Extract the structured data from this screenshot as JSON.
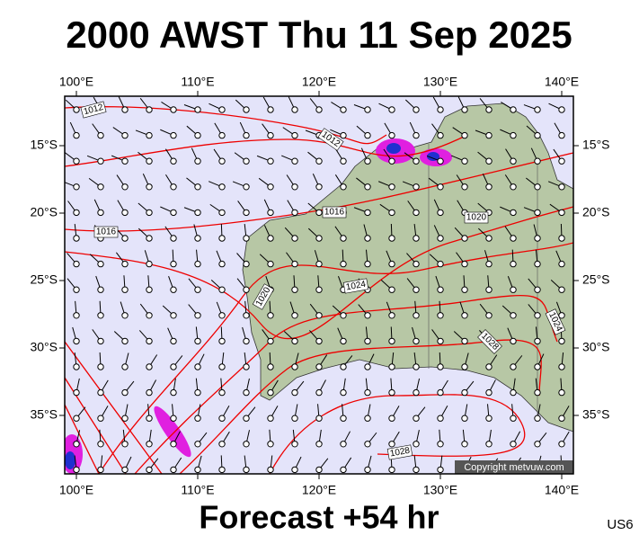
{
  "header": {
    "title": "2000 AWST Thu 11 Sep 2025"
  },
  "map": {
    "lon_ticks": [
      {
        "value": 100,
        "label": "100°E"
      },
      {
        "value": 110,
        "label": "110°E"
      },
      {
        "value": 120,
        "label": "120°E"
      },
      {
        "value": 130,
        "label": "130°E"
      },
      {
        "value": 140,
        "label": "140°E"
      }
    ],
    "lat_ticks": [
      {
        "value": 15,
        "label": "15°S"
      },
      {
        "value": 20,
        "label": "20°S"
      },
      {
        "value": 25,
        "label": "25°S"
      },
      {
        "value": 30,
        "label": "30°S"
      },
      {
        "value": 35,
        "label": "35°S"
      }
    ],
    "isobar_labels": [
      "1012",
      "1012",
      "1016",
      "1016",
      "1020",
      "1020",
      "1024",
      "1024",
      "1028",
      "1028"
    ],
    "copyright": "Copyright metvuw.com"
  },
  "footer": {
    "forecast": "Forecast +54 hr",
    "code": "US6"
  }
}
